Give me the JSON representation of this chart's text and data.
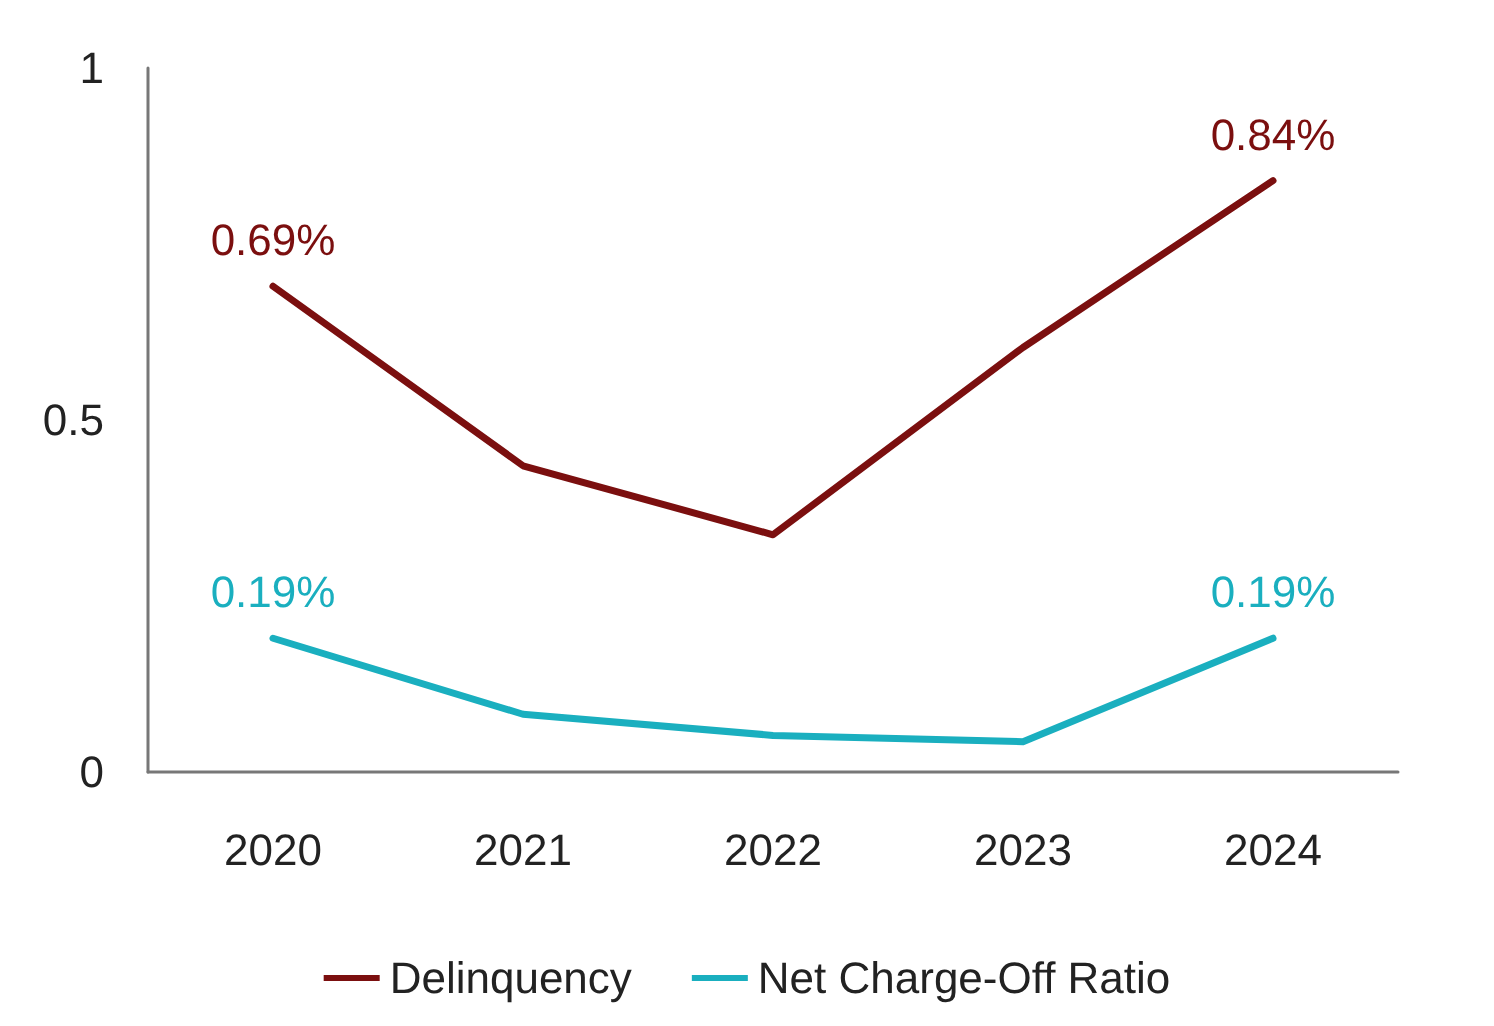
{
  "chart_data": {
    "type": "line",
    "categories": [
      "2020",
      "2021",
      "2022",
      "2023",
      "2024"
    ],
    "series": [
      {
        "name": "Delinquency",
        "color": "#7b0f0f",
        "values": [
          0.69,
          0.435,
          0.337,
          0.603,
          0.84
        ],
        "value_labels": [
          "0.69%",
          null,
          null,
          null,
          "0.84%"
        ]
      },
      {
        "name": "Net Charge-Off Ratio",
        "color": "#1aafbf",
        "values": [
          0.19,
          0.082,
          0.052,
          0.043,
          0.19
        ],
        "value_labels": [
          "0.19%",
          null,
          null,
          null,
          "0.19%"
        ]
      }
    ],
    "ylim": [
      0,
      1
    ],
    "yticks": [
      0,
      0.5,
      1
    ],
    "grid": false,
    "legend": "bottom",
    "marker": "none",
    "line_style": "solid"
  }
}
